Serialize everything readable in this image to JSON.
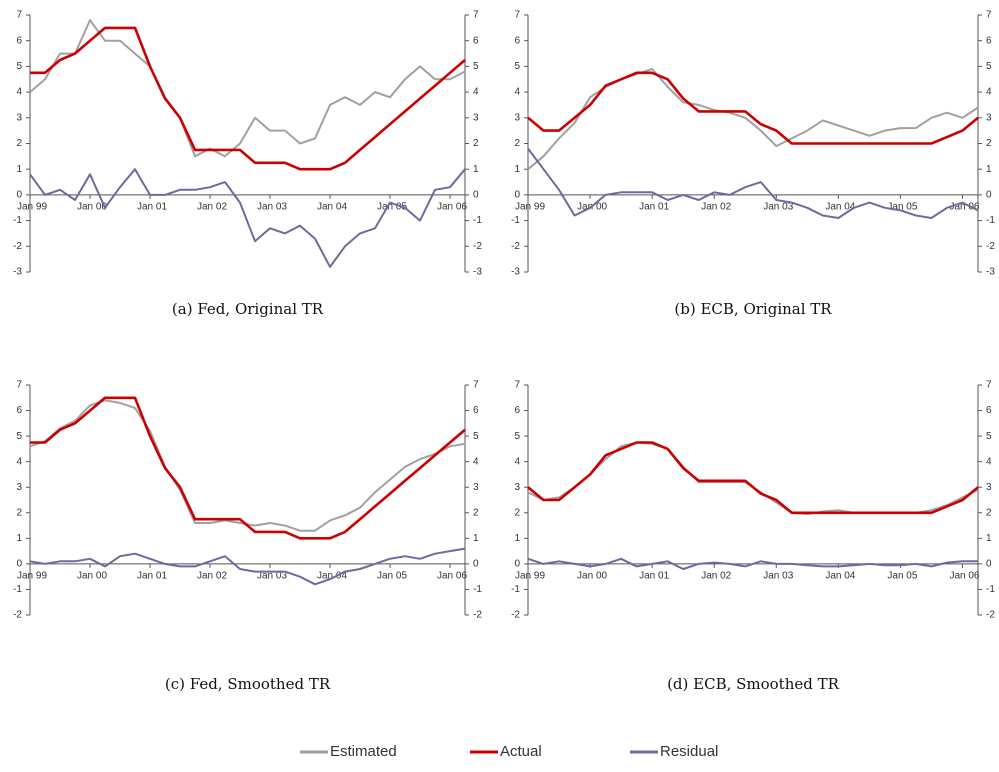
{
  "chart_data": [
    {
      "type": "line",
      "caption": "(a) Fed, Original TR",
      "categories": [
        "Jan 99",
        null,
        null,
        null,
        "Jan 00",
        null,
        null,
        null,
        "Jan 01",
        null,
        null,
        null,
        "Jan 02",
        null,
        null,
        null,
        "Jan 03",
        null,
        null,
        null,
        "Jan 04",
        null,
        null,
        null,
        "Jan 05",
        null,
        null,
        null,
        "Jan 06",
        null
      ],
      "ylim": [
        -3,
        7
      ],
      "yticks": [
        -3,
        -2,
        -1,
        0,
        1,
        2,
        3,
        4,
        5,
        6,
        7
      ],
      "y2lim": [
        -3,
        7
      ],
      "y2ticks": [
        -3,
        -2,
        -1,
        0,
        1,
        2,
        3,
        4,
        5,
        6,
        7
      ],
      "series": [
        {
          "name": "Estimated",
          "color": "#a0a0a0",
          "values": [
            4.0,
            4.5,
            5.5,
            5.5,
            6.8,
            6.0,
            6.0,
            5.5,
            5.0,
            3.8,
            3.0,
            1.5,
            1.8,
            1.5,
            2.0,
            3.0,
            2.5,
            2.5,
            2.0,
            2.2,
            3.5,
            3.8,
            3.5,
            4.0,
            3.8,
            4.5,
            5.0,
            4.5,
            4.5,
            4.8
          ]
        },
        {
          "name": "Actual",
          "color": "#cc0000",
          "values": [
            4.75,
            4.75,
            5.25,
            5.5,
            6.0,
            6.5,
            6.5,
            6.5,
            5.0,
            3.75,
            3.0,
            1.75,
            1.75,
            1.75,
            1.75,
            1.25,
            1.25,
            1.25,
            1.0,
            1.0,
            1.0,
            1.25,
            1.75,
            2.25,
            2.75,
            3.25,
            3.75,
            4.25,
            4.75,
            5.25
          ]
        },
        {
          "name": "Residual",
          "color": "#6b6b9e",
          "values": [
            0.8,
            0,
            0.2,
            -0.2,
            0.8,
            -0.5,
            0.3,
            1.0,
            0,
            0,
            0.2,
            0.2,
            0.3,
            0.5,
            -0.3,
            -1.8,
            -1.3,
            -1.5,
            -1.2,
            -1.7,
            -2.8,
            -2,
            -1.5,
            -1.3,
            -0.3,
            -0.5,
            -1,
            0.2,
            0.3,
            1.0
          ]
        }
      ]
    },
    {
      "type": "line",
      "caption": "(b) ECB, Original TR",
      "categories": [
        "Jan 99",
        null,
        null,
        null,
        "Jan 00",
        null,
        null,
        null,
        "Jan 01",
        null,
        null,
        null,
        "Jan 02",
        null,
        null,
        null,
        "Jan 03",
        null,
        null,
        null,
        "Jan 04",
        null,
        null,
        null,
        "Jan 05",
        null,
        null,
        null,
        "Jan 06",
        null
      ],
      "ylim": [
        -3,
        7
      ],
      "yticks": [
        -3,
        -2,
        -1,
        0,
        1,
        2,
        3,
        4,
        5,
        6,
        7
      ],
      "y2lim": [
        -3,
        7
      ],
      "y2ticks": [
        -3,
        -2,
        -1,
        0,
        1,
        2,
        3,
        4,
        5,
        6,
        7
      ],
      "series": [
        {
          "name": "Estimated",
          "color": "#a0a0a0",
          "values": [
            1.0,
            1.5,
            2.2,
            2.8,
            3.8,
            4.2,
            4.5,
            4.7,
            4.9,
            4.2,
            3.6,
            3.5,
            3.3,
            3.2,
            3.0,
            2.5,
            1.9,
            2.2,
            2.5,
            2.9,
            2.7,
            2.5,
            2.3,
            2.5,
            2.6,
            2.6,
            3.0,
            3.2,
            3.0,
            3.4
          ]
        },
        {
          "name": "Actual",
          "color": "#cc0000",
          "values": [
            3.0,
            2.5,
            2.5,
            3.0,
            3.5,
            4.25,
            4.5,
            4.75,
            4.75,
            4.5,
            3.75,
            3.25,
            3.25,
            3.25,
            3.25,
            2.75,
            2.5,
            2.0,
            2.0,
            2.0,
            2.0,
            2.0,
            2.0,
            2.0,
            2.0,
            2.0,
            2.0,
            2.25,
            2.5,
            3.0
          ]
        },
        {
          "name": "Residual",
          "color": "#6b6b9e",
          "values": [
            1.8,
            1.0,
            0.2,
            -0.8,
            -0.5,
            0,
            0.1,
            0.1,
            0.1,
            -0.2,
            0,
            -0.2,
            0.1,
            0,
            0.3,
            0.5,
            -0.2,
            -0.3,
            -0.5,
            -0.8,
            -0.9,
            -0.5,
            -0.3,
            -0.5,
            -0.6,
            -0.8,
            -0.9,
            -0.5,
            -0.3,
            -0.6
          ]
        }
      ]
    },
    {
      "type": "line",
      "caption": "(c) Fed, Smoothed TR",
      "categories": [
        "Jan 99",
        null,
        null,
        null,
        "Jan 00",
        null,
        null,
        null,
        "Jan 01",
        null,
        null,
        null,
        "Jan 02",
        null,
        null,
        null,
        "Jan 03",
        null,
        null,
        null,
        "Jan 04",
        null,
        null,
        null,
        "Jan 05",
        null,
        null,
        null,
        "Jan 06",
        null
      ],
      "ylim": [
        -2,
        7
      ],
      "yticks": [
        -2,
        -1,
        0,
        1,
        2,
        3,
        4,
        5,
        6,
        7
      ],
      "y2lim": [
        -2,
        7
      ],
      "y2ticks": [
        -2,
        -1,
        0,
        1,
        2,
        3,
        4,
        5,
        6,
        7
      ],
      "series": [
        {
          "name": "Estimated",
          "color": "#a0a0a0",
          "values": [
            4.6,
            4.8,
            5.3,
            5.6,
            6.2,
            6.4,
            6.3,
            6.1,
            5.2,
            3.8,
            2.9,
            1.6,
            1.6,
            1.7,
            1.6,
            1.5,
            1.6,
            1.5,
            1.3,
            1.3,
            1.7,
            1.9,
            2.2,
            2.8,
            3.3,
            3.8,
            4.1,
            4.3,
            4.6,
            4.7
          ]
        },
        {
          "name": "Actual",
          "color": "#cc0000",
          "values": [
            4.75,
            4.75,
            5.25,
            5.5,
            6.0,
            6.5,
            6.5,
            6.5,
            5.0,
            3.75,
            3.0,
            1.75,
            1.75,
            1.75,
            1.75,
            1.25,
            1.25,
            1.25,
            1.0,
            1.0,
            1.0,
            1.25,
            1.75,
            2.25,
            2.75,
            3.25,
            3.75,
            4.25,
            4.75,
            5.25
          ]
        },
        {
          "name": "Residual",
          "color": "#6b6b9e",
          "values": [
            0.1,
            0,
            0.1,
            0.1,
            0.2,
            -0.1,
            0.3,
            0.4,
            0.2,
            0,
            -0.1,
            -0.1,
            0.1,
            0.3,
            -0.2,
            -0.3,
            -0.3,
            -0.3,
            -0.5,
            -0.8,
            -0.6,
            -0.3,
            -0.2,
            0,
            0.2,
            0.3,
            0.2,
            0.4,
            0.5,
            0.6
          ]
        }
      ]
    },
    {
      "type": "line",
      "caption": "(d) ECB, Smoothed TR",
      "categories": [
        "Jan 99",
        null,
        null,
        null,
        "Jan 00",
        null,
        null,
        null,
        "Jan 01",
        null,
        null,
        null,
        "Jan 02",
        null,
        null,
        null,
        "Jan 03",
        null,
        null,
        null,
        "Jan 04",
        null,
        null,
        null,
        "Jan 05",
        null,
        null,
        null,
        "Jan 06",
        null
      ],
      "ylim": [
        -2,
        7
      ],
      "yticks": [
        -2,
        -1,
        0,
        1,
        2,
        3,
        4,
        5,
        6,
        7
      ],
      "y2lim": [
        -2,
        7
      ],
      "y2ticks": [
        -2,
        -1,
        0,
        1,
        2,
        3,
        4,
        5,
        6,
        7
      ],
      "series": [
        {
          "name": "Estimated",
          "color": "#a0a0a0",
          "values": [
            2.8,
            2.5,
            2.6,
            3.0,
            3.5,
            4.1,
            4.6,
            4.75,
            4.7,
            4.5,
            3.8,
            3.2,
            3.2,
            3.2,
            3.2,
            2.8,
            2.4,
            2.0,
            1.95,
            2.05,
            2.1,
            2.0,
            2.0,
            2.0,
            2.0,
            2.0,
            2.1,
            2.3,
            2.6,
            2.9
          ]
        },
        {
          "name": "Actual",
          "color": "#cc0000",
          "values": [
            3.0,
            2.5,
            2.5,
            3.0,
            3.5,
            4.25,
            4.5,
            4.75,
            4.75,
            4.5,
            3.75,
            3.25,
            3.25,
            3.25,
            3.25,
            2.75,
            2.5,
            2.0,
            2.0,
            2.0,
            2.0,
            2.0,
            2.0,
            2.0,
            2.0,
            2.0,
            2.0,
            2.25,
            2.5,
            3.0
          ]
        },
        {
          "name": "Residual",
          "color": "#6b6b9e",
          "values": [
            0.2,
            0,
            0.1,
            0,
            -0.1,
            0,
            0.2,
            -0.1,
            0,
            0.1,
            -0.2,
            0,
            0.05,
            0,
            -0.1,
            0.1,
            0,
            0,
            -0.05,
            -0.1,
            -0.1,
            -0.05,
            0,
            -0.05,
            -0.05,
            0,
            -0.1,
            0.05,
            0.1,
            0.1
          ]
        }
      ]
    }
  ]
}
